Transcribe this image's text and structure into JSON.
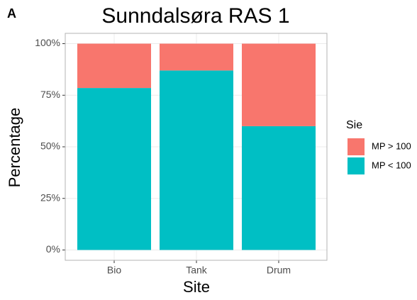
{
  "panel_label": "A",
  "chart_data": {
    "type": "stacked_bar",
    "title": "Sunndalsøra RAS 1",
    "x_label": "Site",
    "y_label": "Percentage",
    "categories": [
      "Bio",
      "Tank",
      "Drum"
    ],
    "legend_title": "Sie",
    "legend_position": "right",
    "series": [
      {
        "name": "MP > 100",
        "color": "#F8766D",
        "values": [
          21.5,
          13,
          40
        ]
      },
      {
        "name": "MP < 100",
        "color": "#00BFC4",
        "values": [
          78.5,
          87,
          60
        ]
      }
    ],
    "ylim": [
      -5,
      105
    ],
    "yticks": [
      {
        "value": 0,
        "label": "0%"
      },
      {
        "value": 25,
        "label": "25%"
      },
      {
        "value": 50,
        "label": "50%"
      },
      {
        "value": 75,
        "label": "75%"
      },
      {
        "value": 100,
        "label": "100%"
      }
    ],
    "grid": true
  }
}
